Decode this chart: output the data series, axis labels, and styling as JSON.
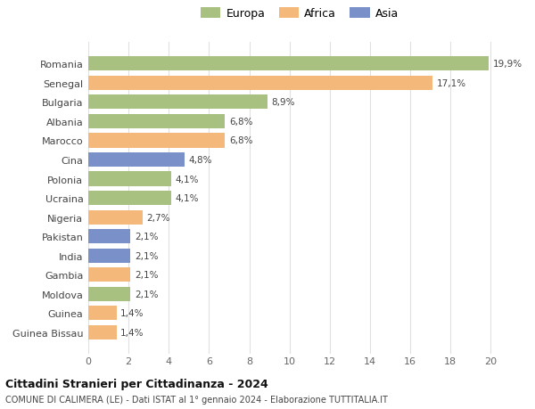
{
  "countries": [
    "Romania",
    "Senegal",
    "Bulgaria",
    "Albania",
    "Marocco",
    "Cina",
    "Polonia",
    "Ucraina",
    "Nigeria",
    "Pakistan",
    "India",
    "Gambia",
    "Moldova",
    "Guinea",
    "Guinea Bissau"
  ],
  "values": [
    19.9,
    17.1,
    8.9,
    6.8,
    6.8,
    4.8,
    4.1,
    4.1,
    2.7,
    2.1,
    2.1,
    2.1,
    2.1,
    1.4,
    1.4
  ],
  "continents": [
    "Europa",
    "Africa",
    "Europa",
    "Europa",
    "Africa",
    "Asia",
    "Europa",
    "Europa",
    "Africa",
    "Asia",
    "Asia",
    "Africa",
    "Europa",
    "Africa",
    "Africa"
  ],
  "colors": {
    "Europa": "#a8c080",
    "Africa": "#f4b97a",
    "Asia": "#7a90c8"
  },
  "xlim": [
    0,
    21
  ],
  "xticks": [
    0,
    2,
    4,
    6,
    8,
    10,
    12,
    14,
    16,
    18,
    20
  ],
  "title": "Cittadini Stranieri per Cittadinanza - 2024",
  "subtitle": "COMUNE DI CALIMERA (LE) - Dati ISTAT al 1° gennaio 2024 - Elaborazione TUTTITALIA.IT",
  "background_color": "#ffffff",
  "grid_color": "#e0e0e0",
  "bar_height": 0.75
}
